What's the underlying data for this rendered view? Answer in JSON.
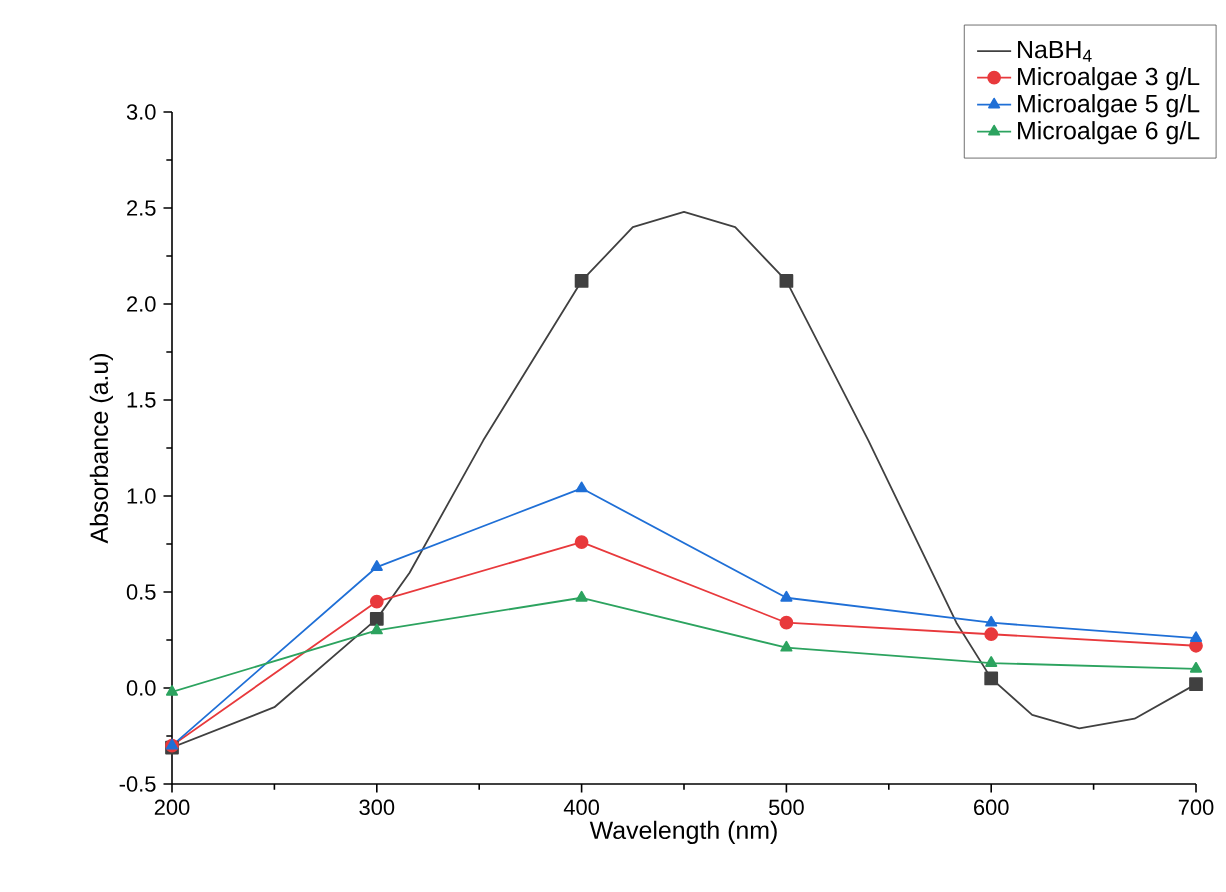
{
  "chart_data": {
    "type": "line",
    "xlabel": "Wavelength (nm)",
    "ylabel": "Absorbance (a.u)",
    "x": [
      200,
      300,
      400,
      500,
      600,
      700
    ],
    "xlim": [
      200,
      700
    ],
    "xticks": [
      200,
      300,
      400,
      500,
      600,
      700
    ],
    "ylim": [
      -0.5,
      3.0
    ],
    "yticks": [
      -0.5,
      {
        "value": 0,
        "label": "0.0"
      },
      0.5,
      {
        "value": 1,
        "label": "1.0"
      },
      1.5,
      {
        "value": 2,
        "label": "2.0"
      },
      2.5,
      {
        "value": 3,
        "label": "3.0"
      }
    ],
    "legend": "top right",
    "series": [
      {
        "name": "NaBH$_{4}$",
        "color": "#404040",
        "marker": "none",
        "x": [
          200,
          250,
          300,
          316,
          352,
          400,
          425,
          450,
          475,
          500,
          540,
          583,
          600,
          620,
          643,
          670,
          700
        ],
        "values": [
          -0.31,
          -0.1,
          0.36,
          0.6,
          1.29,
          2.12,
          2.4,
          2.48,
          2.4,
          2.12,
          1.29,
          0.34,
          0.05,
          -0.14,
          -0.21,
          -0.16,
          0.02
        ]
      },
      {
        "type": "scatter",
        "color": "#404040",
        "marker": "square",
        "values": [
          -0.31,
          0.36,
          2.12,
          2.12,
          0.05,
          0.02
        ]
      },
      {
        "name": "Microalgae 3 g/L",
        "color": "#e8393c",
        "marker": "circle",
        "values": [
          -0.3,
          0.45,
          0.76,
          0.34,
          0.28,
          0.22
        ]
      },
      {
        "name": "Microalgae 5 g/L",
        "color": "#1f6fd6",
        "marker": "triangle",
        "values": [
          -0.3,
          0.63,
          1.04,
          0.47,
          0.34,
          0.26
        ]
      },
      {
        "name": "Microalgae 6 g/L",
        "color": "#2ca35f",
        "marker": "triangle down",
        "values": [
          -0.02,
          0.3,
          0.47,
          0.21,
          0.13,
          0.1
        ]
      }
    ]
  }
}
